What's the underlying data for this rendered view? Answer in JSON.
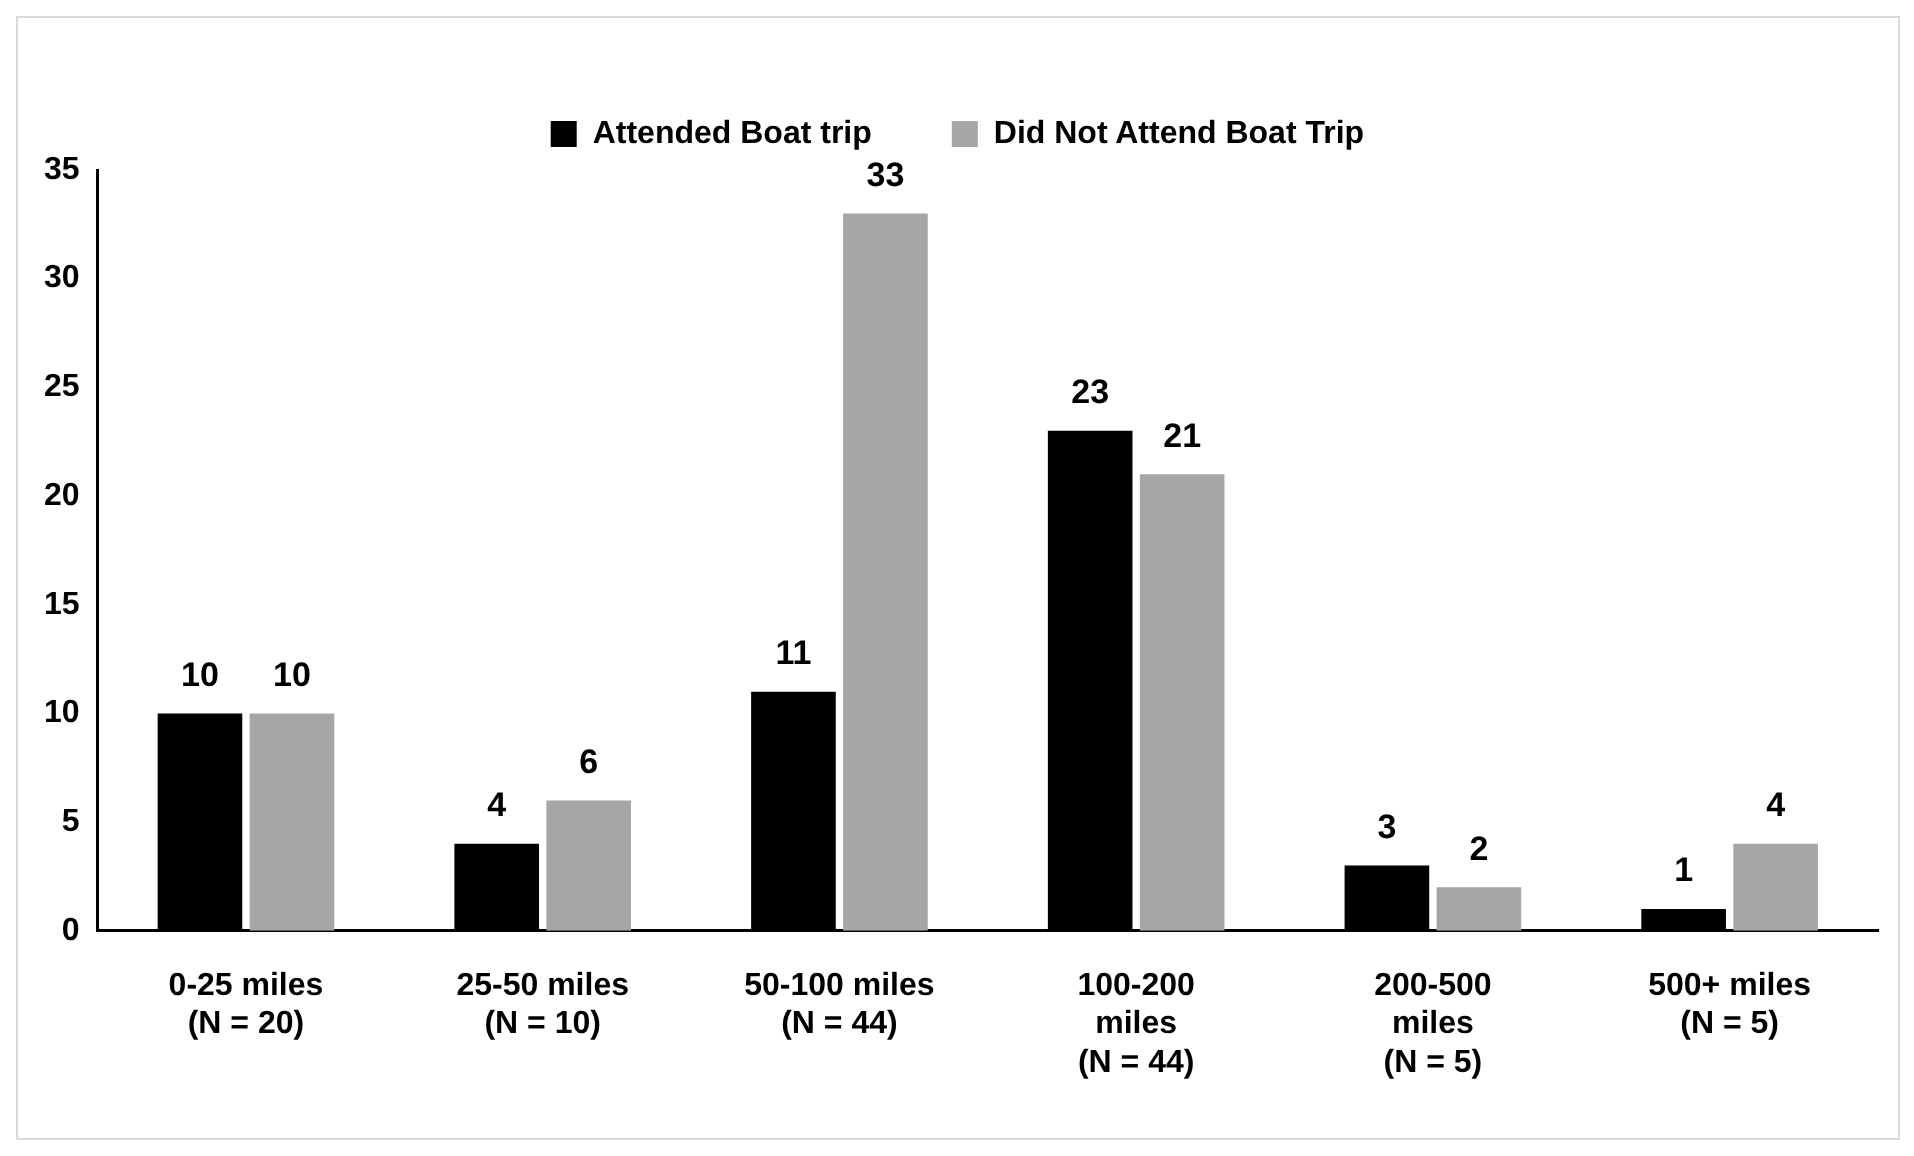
{
  "chart_data": {
    "type": "bar",
    "categories": [
      "0-25 miles\n(N = 20)",
      "25-50 miles\n(N = 10)",
      "50-100 miles\n(N = 44)",
      "100-200\nmiles\n(N = 44)",
      "200-500\nmiles\n(N = 5)",
      "500+ miles\n(N = 5)"
    ],
    "series": [
      {
        "name": "Attended Boat trip",
        "color": "#000000",
        "values": [
          10,
          4,
          11,
          23,
          3,
          1
        ]
      },
      {
        "name": "Did Not Attend Boat Trip",
        "color": "#a6a6a6",
        "values": [
          10,
          6,
          33,
          21,
          2,
          4
        ]
      }
    ],
    "ylim": [
      0,
      35
    ],
    "yticks": [
      0,
      5,
      10,
      15,
      20,
      25,
      30,
      35
    ],
    "grid": false,
    "legend": "top",
    "data_labels": true
  }
}
